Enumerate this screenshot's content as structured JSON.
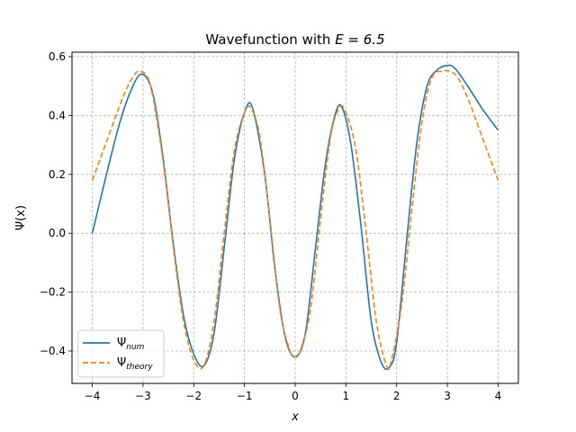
{
  "chart_data": {
    "type": "line",
    "title_prefix": "Wavefunction with ",
    "title_math": "E = 6.5",
    "xlabel": "x",
    "ylabel": "Ψ(x)",
    "xlim": [
      -4.4,
      4.4
    ],
    "ylim": [
      -0.51,
      0.615
    ],
    "xticks": [
      -4,
      -3,
      -2,
      -1,
      0,
      1,
      2,
      3,
      4
    ],
    "xtick_labels": [
      "−4",
      "−3",
      "−2",
      "−1",
      "0",
      "1",
      "2",
      "3",
      "4"
    ],
    "yticks": [
      -0.4,
      -0.2,
      0.0,
      0.2,
      0.4,
      0.6
    ],
    "ytick_labels": [
      "−0.4",
      "−0.2",
      "0.0",
      "0.2",
      "0.4",
      "0.6"
    ],
    "grid": true,
    "legend_placement": "lower-left",
    "series": [
      {
        "name_main": "Ψ",
        "name_sub": "num",
        "color": "#1f77b4",
        "dash": "solid",
        "x": [
          -4.0,
          -3.5,
          -3.2,
          -3.0,
          -2.8,
          -2.6,
          -2.4,
          -2.2,
          -2.0,
          -1.8,
          -1.6,
          -1.4,
          -1.2,
          -1.0,
          -0.84,
          -0.6,
          -0.4,
          -0.2,
          0.0,
          0.2,
          0.4,
          0.6,
          0.8,
          0.93,
          1.1,
          1.3,
          1.5,
          1.7,
          1.86,
          2.0,
          2.2,
          2.4,
          2.6,
          2.8,
          3.0,
          3.15,
          3.4,
          3.7,
          4.0
        ],
        "y": [
          0.0,
          0.35,
          0.5,
          0.54,
          0.47,
          0.25,
          -0.04,
          -0.28,
          -0.41,
          -0.45,
          -0.34,
          -0.05,
          0.25,
          0.41,
          0.425,
          0.2,
          -0.12,
          -0.35,
          -0.42,
          -0.34,
          -0.05,
          0.24,
          0.41,
          0.425,
          0.3,
          0.02,
          -0.3,
          -0.44,
          -0.455,
          -0.37,
          -0.02,
          0.31,
          0.5,
          0.555,
          0.57,
          0.56,
          0.5,
          0.42,
          0.35
        ]
      },
      {
        "name_main": "Ψ",
        "name_sub": "theory",
        "color": "#ff7f0e",
        "dash": "dashed",
        "x": [
          -4.0,
          -3.7,
          -3.4,
          -3.2,
          -3.05,
          -2.85,
          -2.6,
          -2.4,
          -2.2,
          -2.0,
          -1.8,
          -1.6,
          -1.4,
          -1.2,
          -1.0,
          -0.87,
          -0.7,
          -0.5,
          -0.3,
          -0.1,
          0.0,
          0.1,
          0.3,
          0.5,
          0.7,
          0.87,
          1.0,
          1.2,
          1.4,
          1.6,
          1.8,
          1.9,
          2.1,
          2.3,
          2.5,
          2.7,
          2.9,
          3.05,
          3.2,
          3.4,
          3.7,
          4.0
        ],
        "y": [
          0.18,
          0.32,
          0.46,
          0.53,
          0.55,
          0.5,
          0.24,
          -0.05,
          -0.3,
          -0.43,
          -0.45,
          -0.3,
          0.0,
          0.28,
          0.41,
          0.425,
          0.33,
          0.05,
          -0.26,
          -0.4,
          -0.42,
          -0.4,
          -0.26,
          0.05,
          0.33,
          0.425,
          0.41,
          0.28,
          0.0,
          -0.3,
          -0.45,
          -0.43,
          -0.24,
          0.08,
          0.38,
          0.53,
          0.55,
          0.55,
          0.53,
          0.46,
          0.32,
          0.18
        ]
      }
    ]
  }
}
